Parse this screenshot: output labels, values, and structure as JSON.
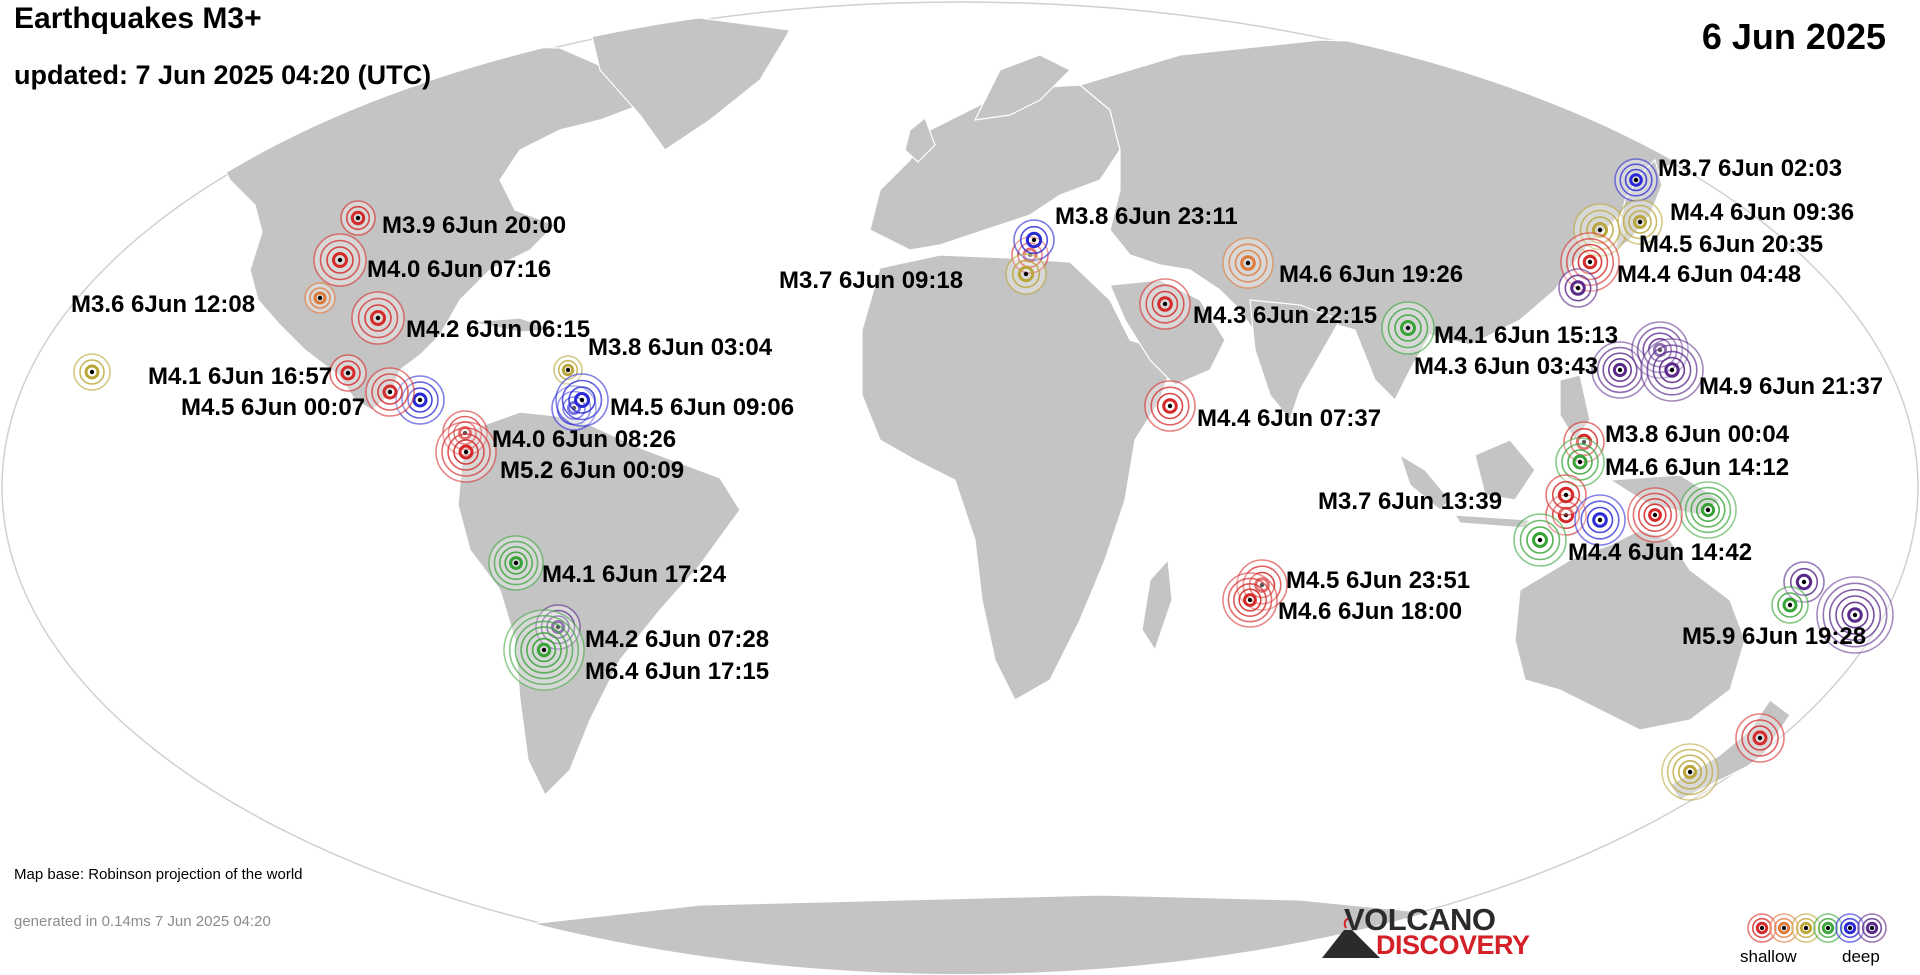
{
  "header": {
    "title": "Earthquakes M3+",
    "updated": "updated:  7 Jun 2025 04:20 (UTC)",
    "date": "6 Jun 2025"
  },
  "footer": {
    "map_base": "Map base: Robinson projection of the world",
    "generated": "generated in 0.14ms  7 Jun 2025 04:20"
  },
  "logo": {
    "volcano": "VOLCANO",
    "discovery": "DISCOVERY"
  },
  "legend": {
    "shallow": "shallow",
    "deep": "deep",
    "depth_colors": [
      "#d42a2a",
      "#e07a3a",
      "#bfa83a",
      "#3aa83a",
      "#2a2ad4",
      "#5a2a8a"
    ]
  },
  "colors": {
    "land": "#c4c4c4",
    "ocean": "#ffffff",
    "depth_classes": {
      "shallow": "#d42a2a",
      "orange": "#e07a3a",
      "olive": "#b9a63a",
      "green": "#37a337",
      "blue": "#2a2ad4",
      "deep": "#5a2a8a"
    }
  },
  "earthquakes": [
    {
      "label": "M3.9  6Jun 20:00",
      "depth": "shallow"
    },
    {
      "label": "M4.0  6Jun 07:16",
      "depth": "shallow"
    },
    {
      "label": "M3.6  6Jun 12:08",
      "depth": "orange"
    },
    {
      "label": "M4.2  6Jun 06:15",
      "depth": "shallow"
    },
    {
      "label": "M4.1  6Jun 16:57",
      "depth": "shallow"
    },
    {
      "label": "M4.5  6Jun 00:07",
      "depth": "shallow"
    },
    {
      "label": "M3.8  6Jun 03:04",
      "depth": "olive"
    },
    {
      "label": "M4.5  6Jun 09:06",
      "depth": "blue"
    },
    {
      "label": "M4.0  6Jun 08:26",
      "depth": "shallow"
    },
    {
      "label": "M5.2  6Jun 00:09",
      "depth": "shallow"
    },
    {
      "label": "M4.1  6Jun 17:24",
      "depth": "green"
    },
    {
      "label": "M4.2  6Jun 07:28",
      "depth": "deep"
    },
    {
      "label": "M6.4  6Jun 17:15",
      "depth": "green"
    },
    {
      "label": "M3.8  6Jun 23:11",
      "depth": "blue"
    },
    {
      "label": "M3.7  6Jun 09:18",
      "depth": "olive"
    },
    {
      "label": "M4.6  6Jun 19:26",
      "depth": "orange"
    },
    {
      "label": "M4.3  6Jun 22:15",
      "depth": "shallow"
    },
    {
      "label": "M4.4  6Jun 07:37",
      "depth": "shallow"
    },
    {
      "label": "M4.1  6Jun 15:13",
      "depth": "green"
    },
    {
      "label": "M4.3  6Jun 03:43",
      "depth": "deep"
    },
    {
      "label": "M3.7  6Jun 02:03",
      "depth": "blue"
    },
    {
      "label": "M4.4  6Jun 09:36",
      "depth": "olive"
    },
    {
      "label": "M4.5  6Jun 20:35",
      "depth": "shallow"
    },
    {
      "label": "M4.4  6Jun 04:48",
      "depth": "deep"
    },
    {
      "label": "M4.9  6Jun 21:37",
      "depth": "deep"
    },
    {
      "label": "M3.8  6Jun 00:04",
      "depth": "shallow"
    },
    {
      "label": "M4.6  6Jun 14:12",
      "depth": "green"
    },
    {
      "label": "M3.7  6Jun 13:39",
      "depth": "shallow"
    },
    {
      "label": "M4.4  6Jun 14:42",
      "depth": "blue"
    },
    {
      "label": "M4.5  6Jun 23:51",
      "depth": "shallow"
    },
    {
      "label": "M4.6  6Jun 18:00",
      "depth": "shallow"
    },
    {
      "label": "M5.9  6Jun 19:28",
      "depth": "deep"
    }
  ]
}
